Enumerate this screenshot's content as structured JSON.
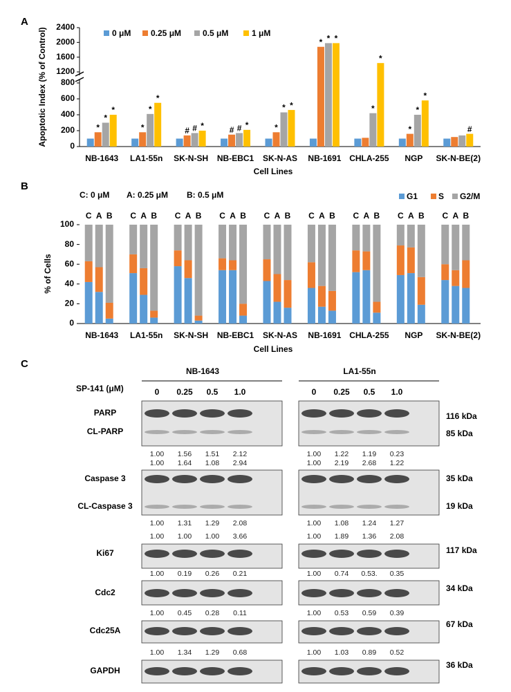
{
  "chart_data": [
    {
      "type": "broken_bar",
      "label": "A",
      "y_label": "Apoptotic Index (% of Control)",
      "x_label": "Cell Lines",
      "categories": [
        "NB-1643",
        "LA1-55n",
        "SK-N-SH",
        "NB-EBC1",
        "SK-N-AS",
        "NB-1691",
        "CHLA-255",
        "NGP",
        "SK-N-BE(2)"
      ],
      "series": [
        {
          "name": "0 μM",
          "color": "#5b9bd5",
          "values": [
            100,
            100,
            100,
            100,
            100,
            100,
            100,
            100,
            100
          ],
          "markers": [
            null,
            null,
            null,
            null,
            null,
            null,
            null,
            null,
            null
          ]
        },
        {
          "name": "0.25 μM",
          "color": "#ed7d31",
          "values": [
            180,
            180,
            140,
            150,
            180,
            1880,
            110,
            160,
            120
          ],
          "markers": [
            "*",
            "*",
            "#",
            "#",
            "*",
            "*",
            null,
            "*",
            null
          ]
        },
        {
          "name": "0.5 μM",
          "color": "#a5a5a5",
          "values": [
            300,
            410,
            170,
            170,
            430,
            1980,
            420,
            400,
            140
          ],
          "markers": [
            "*",
            "*",
            "#",
            "#",
            "*",
            "*",
            "*",
            "*",
            null
          ]
        },
        {
          "name": "1 μM",
          "color": "#ffc000",
          "values": [
            400,
            550,
            200,
            210,
            460,
            1980,
            1440,
            580,
            160
          ],
          "markers": [
            "*",
            "*",
            "*",
            "*",
            "*",
            "*",
            "*",
            "*",
            "#"
          ]
        }
      ],
      "ylim": [
        0,
        2400
      ],
      "axis_break": [
        800,
        1200
      ],
      "yticks": [
        0,
        200,
        400,
        600,
        800,
        1200,
        1600,
        2000,
        2400
      ]
    },
    {
      "type": "grouped_stacked_bar",
      "label": "B",
      "y_label": "% of Cells",
      "x_label": "Cell Lines",
      "dose_key": [
        "C: 0 μM",
        "A: 0.25 μM",
        "B: 0.5 μM"
      ],
      "categories": [
        "NB-1643",
        "LA1-55n",
        "SK-N-SH",
        "NB-EBC1",
        "SK-N-AS",
        "NB-1691",
        "CHLA-255",
        "NGP",
        "SK-N-BE(2)"
      ],
      "subcategories": [
        "C",
        "A",
        "B"
      ],
      "series": [
        {
          "name": "G1",
          "color": "#5b9bd5",
          "values": [
            [
              42,
              32,
              5
            ],
            [
              51,
              29,
              6
            ],
            [
              58,
              46,
              3
            ],
            [
              54,
              54,
              8
            ],
            [
              43,
              22,
              16
            ],
            [
              36,
              17,
              13
            ],
            [
              52,
              54,
              11
            ],
            [
              49,
              51,
              19
            ],
            [
              44,
              38,
              36
            ]
          ]
        },
        {
          "name": "S",
          "color": "#ed7d31",
          "values": [
            [
              21,
              25,
              16
            ],
            [
              19,
              27,
              7
            ],
            [
              16,
              18,
              5
            ],
            [
              12,
              10,
              12
            ],
            [
              22,
              28,
              28
            ],
            [
              26,
              21,
              20
            ],
            [
              22,
              19,
              11
            ],
            [
              30,
              26,
              28
            ],
            [
              16,
              16,
              28
            ]
          ]
        },
        {
          "name": "G2/M",
          "color": "#a5a5a5",
          "values": [
            [
              37,
              43,
              79
            ],
            [
              30,
              44,
              87
            ],
            [
              26,
              36,
              92
            ],
            [
              34,
              36,
              80
            ],
            [
              35,
              50,
              56
            ],
            [
              38,
              62,
              67
            ],
            [
              26,
              27,
              78
            ],
            [
              21,
              23,
              53
            ],
            [
              40,
              46,
              36
            ]
          ]
        }
      ],
      "ylim": [
        0,
        100
      ],
      "yticks": [
        0,
        20,
        40,
        60,
        80,
        100
      ]
    }
  ],
  "blot": {
    "label": "C",
    "dose_label": "SP-141 (μM)",
    "lines": [
      {
        "name": "NB-1643",
        "doses": [
          "0",
          "0.25",
          "0.5",
          "1.0"
        ]
      },
      {
        "name": "LA1-55n",
        "doses": [
          "0",
          "0.25",
          "0.5",
          "1.0"
        ]
      }
    ],
    "rows": [
      {
        "proteins": [
          "PARP",
          "CL-PARP"
        ],
        "sizes": [
          "116 kDa",
          "85 kDa"
        ],
        "quant": [
          [
            [
              "1.00",
              "1.56",
              "1.51",
              "2.12"
            ],
            [
              "1.00",
              "1.22",
              "1.19",
              "0.23"
            ]
          ],
          [
            [
              "1.00",
              "1.64",
              "1.08",
              "2.94"
            ],
            [
              "1.00",
              "2.19",
              "2.68",
              "1.22"
            ]
          ]
        ]
      },
      {
        "proteins": [
          "Caspase 3",
          "CL-Caspase 3"
        ],
        "sizes": [
          "35 kDa",
          "19 kDa"
        ],
        "quant": [
          [
            [
              "1.00",
              "1.31",
              "1.29",
              "2.08"
            ],
            [
              "1.00",
              "1.08",
              "1.24",
              "1.27"
            ]
          ],
          [
            [
              "1.00",
              "1.00",
              "1.00",
              "3.66"
            ],
            [
              "1.00",
              "1.89",
              "1.36",
              "2.08"
            ]
          ]
        ]
      },
      {
        "proteins": [
          "Ki67"
        ],
        "sizes": [
          "117 kDa"
        ],
        "quant": [
          [
            [
              "1.00",
              "0.19",
              "0.26",
              "0.21"
            ],
            [
              "1.00",
              "0.74",
              "0.53.",
              "0.35"
            ]
          ]
        ]
      },
      {
        "proteins": [
          "Cdc2"
        ],
        "sizes": [
          "34 kDa"
        ],
        "quant": [
          [
            [
              "1.00",
              "0.45",
              "0.28",
              "0.11"
            ],
            [
              "1.00",
              "0.53",
              "0.59",
              "0.39"
            ]
          ]
        ]
      },
      {
        "proteins": [
          "Cdc25A"
        ],
        "sizes": [
          "67 kDa"
        ],
        "quant": [
          [
            [
              "1.00",
              "1.34",
              "1.29",
              "0.68"
            ],
            [
              "1.00",
              "1.03",
              "0.89",
              "0.52"
            ]
          ]
        ]
      },
      {
        "proteins": [
          "GAPDH"
        ],
        "sizes": [
          "36 kDa"
        ],
        "quant": []
      }
    ]
  }
}
